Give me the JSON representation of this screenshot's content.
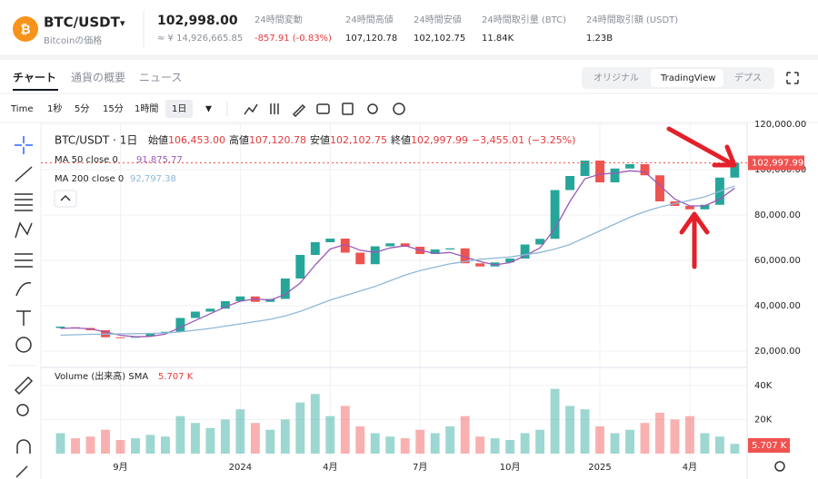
{
  "header": {
    "symbol": "BTC/USDT",
    "caret": "▾",
    "subtitle": "Bitcoinの価格",
    "price": "102,998.00",
    "price_local": "≈ ¥ 14,926,665.85",
    "stats": [
      {
        "label": "24時間変動",
        "value": "-857.91 (-0.83%)"
      },
      {
        "label": "24時間高値",
        "value": "107,120.78"
      },
      {
        "label": "24時間安値",
        "value": "102,102.75"
      },
      {
        "label": "24時間取引量 (BTC)",
        "value": "11.84K"
      },
      {
        "label": "24時間取引額 (USDT)",
        "value": "1.23B"
      }
    ]
  },
  "tabs": [
    "チャート",
    "通貨の概要",
    "ニュース"
  ],
  "view_modes": [
    "オリジナル",
    "TradingView",
    "デプス"
  ],
  "intervals": [
    "Time",
    "1秒",
    "5分",
    "15分",
    "1時間",
    "1日"
  ],
  "interval_caret": "▼",
  "legend": {
    "symbol": "BTC/USDT · 1日",
    "open_label": "始値",
    "open": "106,453.00",
    "high_label": "高値",
    "high": "107,120.78",
    "low_label": "安値",
    "low": "102,102.75",
    "close_label": "終値",
    "close": "102,997.99",
    "change": "−3,455.01 (−3.25%)"
  },
  "chart_data": {
    "type": "candlestick",
    "up_color": "#26a69a",
    "down_color": "#ef5350",
    "closes": [
      30500,
      30200,
      29200,
      26100,
      25900,
      26600,
      27900,
      28500,
      34600,
      37400,
      38700,
      42000,
      44100,
      41700,
      43000,
      52000,
      62400,
      68000,
      69600,
      63400,
      58300,
      66200,
      67500,
      66000,
      62800,
      64800,
      65300,
      58700,
      57300,
      59100,
      60800,
      67000,
      69500,
      91000,
      97200,
      104000,
      94400,
      100500,
      102400,
      97500,
      86000,
      84000,
      82500,
      84500,
      96500,
      102997.99
    ],
    "last_label": "102,997.99",
    "series": [
      {
        "name": "MA 50 close 0",
        "color": "#9b59b6",
        "value_label": "91,875.77",
        "values": [
          30000,
          30200,
          29800,
          28400,
          27000,
          26300,
          26500,
          27500,
          30500,
          33500,
          36500,
          39500,
          42000,
          43000,
          42500,
          45000,
          50000,
          58000,
          65000,
          67000,
          64500,
          63500,
          65500,
          66500,
          64500,
          63000,
          63500,
          61500,
          59500,
          58000,
          59000,
          62000,
          65500,
          74000,
          86000,
          96000,
          98000,
          98500,
          99500,
          99000,
          93000,
          87000,
          84000,
          84000,
          87000,
          91875.77
        ]
      },
      {
        "name": "MA 200 close 0",
        "color": "#8fb8d8",
        "value_label": "92,797.38",
        "values": [
          27000,
          27200,
          27400,
          27500,
          27600,
          27700,
          27800,
          28000,
          28500,
          29200,
          30000,
          31000,
          32000,
          33000,
          34000,
          35500,
          37500,
          40000,
          42500,
          44500,
          46500,
          48500,
          51000,
          53500,
          55500,
          57000,
          58500,
          59500,
          60500,
          61000,
          61500,
          62500,
          63500,
          65000,
          67000,
          70000,
          73000,
          76000,
          79000,
          81500,
          83500,
          85000,
          86500,
          88000,
          90500,
          92797.38
        ]
      }
    ],
    "xlim": [
      -0.7,
      45.4
    ],
    "xticks": [
      {
        "value": 4,
        "label": "9月"
      },
      {
        "value": 12,
        "label": "2024"
      },
      {
        "value": 18,
        "label": "4月"
      },
      {
        "value": 24,
        "label": "7月"
      },
      {
        "value": 30,
        "label": "10月"
      },
      {
        "value": 36,
        "label": "2025"
      },
      {
        "value": 42,
        "label": "4月"
      }
    ],
    "ylim": [
      12800,
      120800
    ],
    "yticks": [
      {
        "value": 20000,
        "label": "20,000.00"
      },
      {
        "value": 40000,
        "label": "40,000.00"
      },
      {
        "value": 60000,
        "label": "60,000.00"
      },
      {
        "value": 80000,
        "label": "80,000.00"
      },
      {
        "value": 100000,
        "label": "100,000.00"
      },
      {
        "value": 120000,
        "label": "120,000.00"
      }
    ],
    "volume": {
      "name": "Volume (出来高) SMA",
      "value_label": "5.707 K",
      "values": [
        12000,
        9000,
        10000,
        14000,
        8000,
        9000,
        11000,
        10000,
        22000,
        18000,
        15000,
        20000,
        26000,
        18000,
        14000,
        20000,
        30000,
        35000,
        22000,
        28000,
        16000,
        12000,
        10000,
        9000,
        14000,
        12000,
        16000,
        22000,
        10000,
        9000,
        8000,
        12000,
        14000,
        38000,
        28000,
        26000,
        16000,
        12000,
        14000,
        18000,
        24000,
        20000,
        22000,
        12000,
        10000,
        5707
      ],
      "ylim": [
        0,
        49000
      ],
      "yticks": [
        {
          "value": 20000,
          "label": "20K"
        },
        {
          "value": 40000,
          "label": "40K"
        }
      ]
    }
  }
}
